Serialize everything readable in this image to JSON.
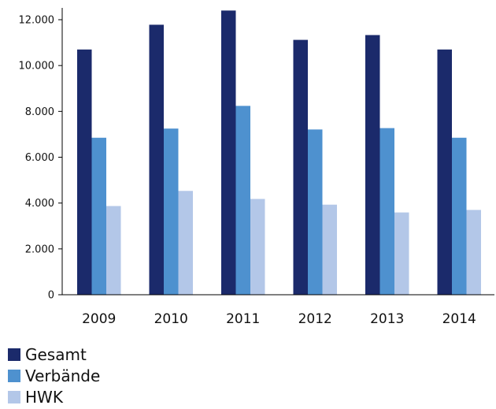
{
  "chart_data": {
    "type": "bar",
    "categories": [
      "2009",
      "2010",
      "2011",
      "2012",
      "2013",
      "2014"
    ],
    "series": [
      {
        "name": "Gesamt",
        "color": "#1b2a6b",
        "values": [
          10700,
          11780,
          12400,
          11120,
          11330,
          10700
        ]
      },
      {
        "name": "Verbände",
        "color": "#4e91cf",
        "values": [
          6850,
          7250,
          8240,
          7210,
          7270,
          6850
        ]
      },
      {
        "name": "HWK",
        "color": "#b3c7e8",
        "values": [
          3870,
          4530,
          4180,
          3930,
          3590,
          3700
        ]
      }
    ],
    "ylim": [
      0,
      12000
    ],
    "yticks": [
      0,
      2000,
      4000,
      6000,
      8000,
      10000,
      12000
    ],
    "ytick_labels": [
      "0",
      "2.000",
      "4.000",
      "6.000",
      "8.000",
      "10.000",
      "12.000"
    ],
    "title": "",
    "xlabel": "",
    "ylabel": "",
    "legend_position": "bottom-left",
    "grid": false
  }
}
